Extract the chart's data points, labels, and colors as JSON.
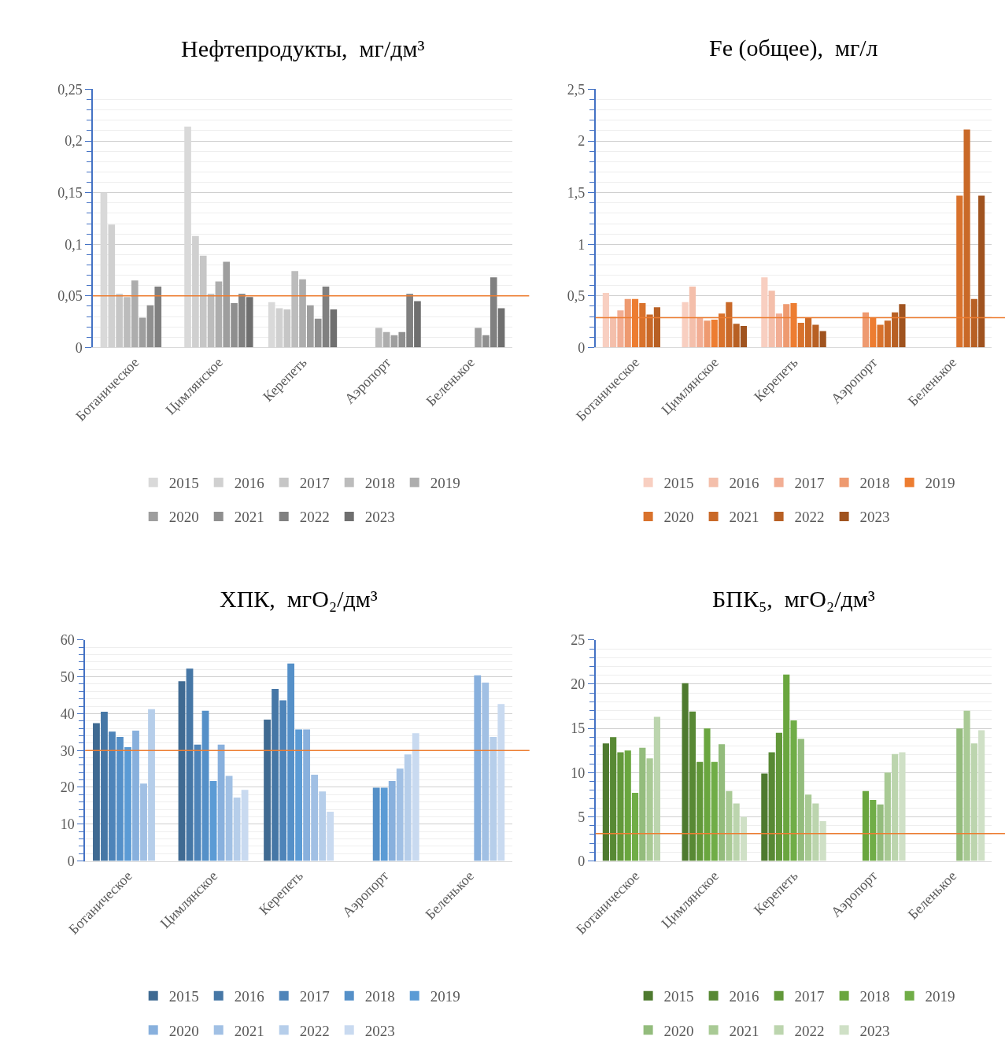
{
  "chart_data": [
    {
      "type": "bar",
      "title": "Нефтепродукты,  мг/дм³",
      "categories": [
        "Ботаническое",
        "Цимлянское",
        "Керепеть",
        "Аэропорт",
        "Беленькое"
      ],
      "ylim": [
        0,
        0.25
      ],
      "yticks": [
        0,
        {
          "value": 0.05,
          "label": "0,05"
        },
        {
          "value": 0.1,
          "label": "0,1"
        },
        {
          "value": 0.15,
          "label": "0,15"
        },
        {
          "value": 0.2,
          "label": "0,2"
        },
        {
          "value": 0.25,
          "label": "0,25"
        }
      ],
      "grid": "y",
      "legend": "bottom",
      "ref_lines": [
        {
          "axis": "y",
          "value": 0.05,
          "color": "#ed7d31"
        }
      ],
      "series": [
        {
          "name": "2015",
          "color": "#d9d9d9",
          "values": [
            0.15,
            0.214,
            0.044,
            null,
            null
          ]
        },
        {
          "name": "2016",
          "color": "#d0d0d0",
          "values": [
            0.119,
            0.108,
            0.038,
            null,
            null
          ]
        },
        {
          "name": "2017",
          "color": "#c6c6c6",
          "values": [
            0.052,
            0.089,
            0.037,
            null,
            null
          ]
        },
        {
          "name": "2018",
          "color": "#bcbcbc",
          "values": [
            0.049,
            0.052,
            0.074,
            0.019,
            null
          ]
        },
        {
          "name": "2019",
          "color": "#adadad",
          "values": [
            0.065,
            0.064,
            0.066,
            0.015,
            null
          ]
        },
        {
          "name": "2020",
          "color": "#9e9e9e",
          "values": [
            0.029,
            0.083,
            0.041,
            0.012,
            0.019
          ]
        },
        {
          "name": "2021",
          "color": "#8f8f8f",
          "values": [
            0.041,
            0.043,
            0.028,
            0.015,
            0.012
          ]
        },
        {
          "name": "2022",
          "color": "#808080",
          "values": [
            0.059,
            0.052,
            0.059,
            0.052,
            0.068
          ]
        },
        {
          "name": "2023",
          "color": "#6f6f6f",
          "values": [
            null,
            0.049,
            0.037,
            0.045,
            0.038
          ]
        }
      ]
    },
    {
      "type": "bar",
      "title": "Fe (общее),  мг/л",
      "categories": [
        "Ботаническое",
        "Цимлянское",
        "Керепеть",
        "Аэропорт",
        "Беленькое"
      ],
      "ylim": [
        0,
        2.5
      ],
      "yticks": [
        0,
        {
          "value": 0.5,
          "label": "0,5"
        },
        1,
        {
          "value": 1.5,
          "label": "1,5"
        },
        2,
        {
          "value": 2.5,
          "label": "2,5"
        }
      ],
      "grid": "y",
      "legend": "bottom",
      "ref_lines": [
        {
          "axis": "y",
          "value": 0.29,
          "color": "#ed7d31"
        }
      ],
      "series": [
        {
          "name": "2015",
          "color": "#f8cfc1",
          "values": [
            0.53,
            0.44,
            0.68,
            null,
            null
          ]
        },
        {
          "name": "2016",
          "color": "#f4bfab",
          "values": [
            0.3,
            0.59,
            0.55,
            null,
            null
          ]
        },
        {
          "name": "2017",
          "color": "#f2ae94",
          "values": [
            0.36,
            0.29,
            0.33,
            null,
            null
          ]
        },
        {
          "name": "2018",
          "color": "#ee9a70",
          "values": [
            0.47,
            0.26,
            0.42,
            0.34,
            null
          ]
        },
        {
          "name": "2019",
          "color": "#ed7d31",
          "values": [
            0.47,
            0.27,
            0.43,
            0.29,
            null
          ]
        },
        {
          "name": "2020",
          "color": "#d9722c",
          "values": [
            0.43,
            0.33,
            0.24,
            0.22,
            1.47
          ]
        },
        {
          "name": "2021",
          "color": "#c96928",
          "values": [
            0.32,
            0.44,
            0.29,
            0.26,
            2.11
          ]
        },
        {
          "name": "2022",
          "color": "#b86024",
          "values": [
            0.39,
            0.23,
            0.22,
            0.34,
            0.47
          ]
        },
        {
          "name": "2023",
          "color": "#a0531f",
          "values": [
            null,
            0.21,
            0.16,
            0.42,
            1.47
          ]
        }
      ]
    },
    {
      "type": "bar",
      "title": "ХПК,  мгО₂/дм³",
      "categories": [
        "Ботаническое",
        "Цимлянское",
        "Керепеть",
        "Аэропорт",
        "Беленькое"
      ],
      "ylim": [
        0,
        60
      ],
      "yticks": [
        0,
        10,
        20,
        30,
        40,
        50,
        60
      ],
      "grid": "y",
      "legend": "bottom",
      "ref_lines": [
        {
          "axis": "y",
          "value": 30,
          "color": "#ed7d31"
        }
      ],
      "series": [
        {
          "name": "2015",
          "color": "#3f6a92",
          "values": [
            37.4,
            48.8,
            38.4,
            null,
            null
          ]
        },
        {
          "name": "2016",
          "color": "#4677a6",
          "values": [
            40.5,
            52.2,
            46.7,
            null,
            null
          ]
        },
        {
          "name": "2017",
          "color": "#4e84b9",
          "values": [
            35.1,
            31.6,
            43.6,
            null,
            null
          ]
        },
        {
          "name": "2018",
          "color": "#5590c8",
          "values": [
            33.7,
            40.8,
            53.6,
            19.9,
            null
          ]
        },
        {
          "name": "2019",
          "color": "#5b9bd5",
          "values": [
            30.9,
            21.7,
            35.7,
            19.9,
            null
          ]
        },
        {
          "name": "2020",
          "color": "#88b0dd",
          "values": [
            35.4,
            31.6,
            35.7,
            21.7,
            50.4
          ]
        },
        {
          "name": "2021",
          "color": "#a1c0e4",
          "values": [
            21.0,
            23.1,
            23.4,
            25.1,
            48.4
          ]
        },
        {
          "name": "2022",
          "color": "#b6ceea",
          "values": [
            41.2,
            17.2,
            18.9,
            28.9,
            33.7
          ]
        },
        {
          "name": "2023",
          "color": "#c9daf0",
          "values": [
            null,
            19.3,
            13.4,
            34.7,
            42.6
          ]
        }
      ]
    },
    {
      "type": "bar",
      "title": "БПК₅,  мгО₂/дм³",
      "categories": [
        "Ботаническое",
        "Цимлянское",
        "Керепеть",
        "Аэропорт",
        "Беленькое"
      ],
      "ylim": [
        0,
        25
      ],
      "yticks": [
        0,
        5,
        10,
        15,
        20,
        25
      ],
      "grid": "y",
      "legend": "bottom",
      "ref_lines": [
        {
          "axis": "y",
          "value": 3.1,
          "color": "#ed7d31"
        }
      ],
      "series": [
        {
          "name": "2015",
          "color": "#4e7a2f",
          "values": [
            13.3,
            20.1,
            9.9,
            null,
            null
          ]
        },
        {
          "name": "2016",
          "color": "#588934",
          "values": [
            14.0,
            16.9,
            12.3,
            null,
            null
          ]
        },
        {
          "name": "2017",
          "color": "#62983a",
          "values": [
            12.3,
            11.2,
            14.5,
            null,
            null
          ]
        },
        {
          "name": "2018",
          "color": "#6aa63f",
          "values": [
            12.5,
            15.0,
            21.1,
            7.9,
            null
          ]
        },
        {
          "name": "2019",
          "color": "#70ad47",
          "values": [
            7.7,
            11.2,
            15.9,
            6.9,
            null
          ]
        },
        {
          "name": "2020",
          "color": "#93bc7c",
          "values": [
            12.8,
            13.2,
            13.8,
            6.4,
            15.0
          ]
        },
        {
          "name": "2021",
          "color": "#a9ca95",
          "values": [
            11.6,
            7.9,
            7.5,
            10.0,
            17.0
          ]
        },
        {
          "name": "2022",
          "color": "#bcd5ae",
          "values": [
            16.3,
            6.5,
            6.5,
            12.1,
            13.3
          ]
        },
        {
          "name": "2023",
          "color": "#cfe0c6",
          "values": [
            null,
            5.0,
            4.5,
            12.3,
            14.8
          ]
        }
      ]
    }
  ]
}
